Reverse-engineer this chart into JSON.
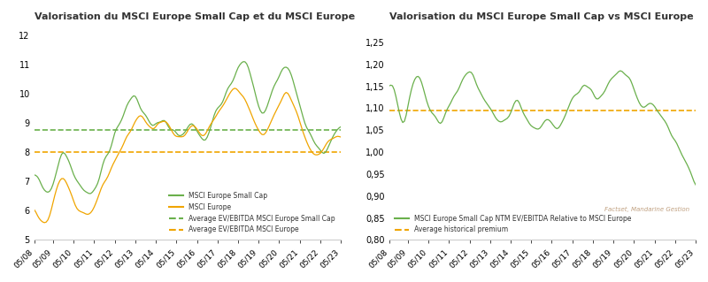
{
  "title1": "Valorisation du MSCI Europe Small Cap et du MSCI Europe",
  "title2": "Valorisation du MSCI Europe Small Cap vs MSCI Europe",
  "x_labels": [
    "05/08",
    "05/09",
    "05/10",
    "05/11",
    "05/12",
    "05/13",
    "05/14",
    "05/15",
    "05/16",
    "05/17",
    "05/18",
    "05/19",
    "05/20",
    "05/21",
    "05/22",
    "05/23"
  ],
  "avg_sc": 8.75,
  "avg_eu": 8.0,
  "avg_ratio": 1.095,
  "color_sc": "#6ab04c",
  "color_eu": "#f0a500",
  "color_sc_dash": "#6ab04c",
  "color_eu_dash": "#f0a500",
  "color_ratio": "#6ab04c",
  "color_ratio_dash": "#f0a500",
  "background": "#ffffff",
  "text_color": "#333333",
  "source_text": "Factset, Mandarine Gestion",
  "legend1": [
    "MSCI Europe Small Cap",
    "MSCI Europe",
    "Average EV/EBITDA MSCI Europe Small Cap",
    "Average EV/EBITDA MSCI Europe"
  ],
  "legend2": [
    "MSCI Europe Small Cap NTM EV/EBITDA Relative to MSCI Europe",
    "Average historical premium"
  ],
  "ylim1": [
    5,
    12.2
  ],
  "ylim2": [
    0.8,
    1.28
  ],
  "yticks1": [
    5,
    6,
    7,
    8,
    9,
    10,
    11,
    12
  ],
  "yticks2": [
    0.8,
    0.85,
    0.9,
    0.95,
    1.0,
    1.05,
    1.1,
    1.15,
    1.2,
    1.25
  ]
}
